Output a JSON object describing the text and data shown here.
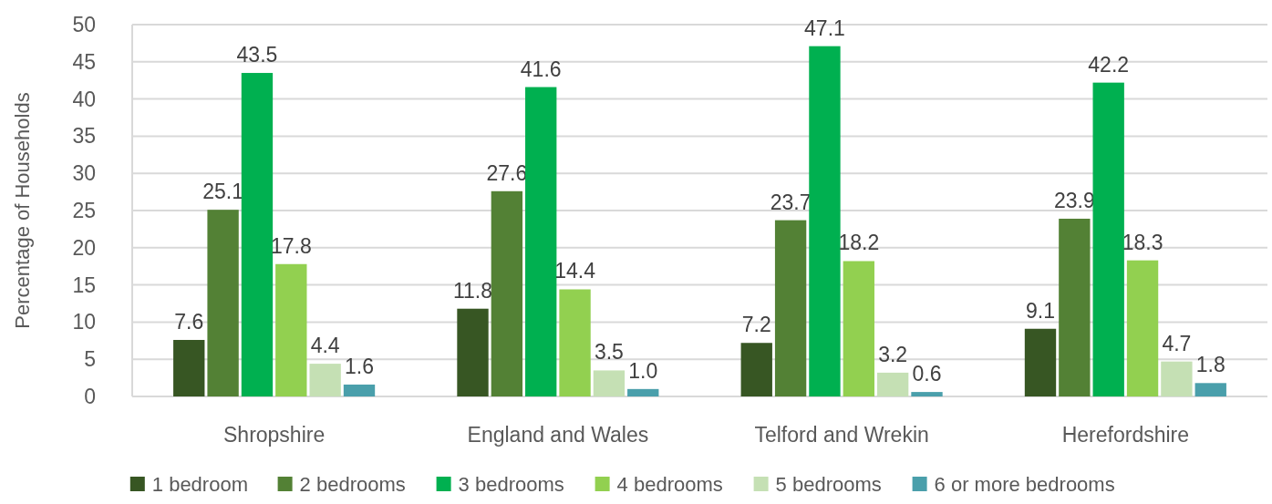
{
  "chart_data": {
    "type": "bar",
    "ylabel": "Percentage of Households",
    "categories": [
      "Shropshire",
      "England and Wales",
      "Telford and Wrekin",
      "Herefordshire"
    ],
    "series": [
      {
        "name": "1 bedroom",
        "color": "#375623",
        "values": [
          7.6,
          11.8,
          7.2,
          9.1
        ],
        "value_labels": [
          "7.6",
          "11.8",
          "7.2",
          "9.1"
        ]
      },
      {
        "name": "2 bedrooms",
        "color": "#538135",
        "values": [
          25.1,
          27.6,
          23.7,
          23.9
        ],
        "value_labels": [
          "25.1",
          "27.6",
          "23.7",
          "23.9"
        ]
      },
      {
        "name": "3 bedrooms",
        "color": "#00b050",
        "values": [
          43.5,
          41.6,
          47.1,
          42.2
        ],
        "value_labels": [
          "43.5",
          "41.6",
          "47.1",
          "42.2"
        ]
      },
      {
        "name": "4 bedrooms",
        "color": "#92d050",
        "values": [
          17.8,
          14.4,
          18.2,
          18.3
        ],
        "value_labels": [
          "17.8",
          "14.4",
          "18.2",
          "18.3"
        ]
      },
      {
        "name": "5 bedrooms",
        "color": "#c5e0b4",
        "values": [
          4.4,
          3.5,
          3.2,
          4.7
        ],
        "value_labels": [
          "4.4",
          "3.5",
          "3.2",
          "4.7"
        ]
      },
      {
        "name": "6 or more bedrooms",
        "color": "#4a9fab",
        "values": [
          1.6,
          1.0,
          0.6,
          1.8
        ],
        "value_labels": [
          "1.6",
          "1.0",
          "0.6",
          "1.8"
        ]
      }
    ],
    "ylim": [
      0,
      50
    ],
    "yticks": [
      0,
      5,
      10,
      15,
      20,
      25,
      30,
      35,
      40,
      45,
      50
    ],
    "grid": "y",
    "legend": "bottom"
  }
}
